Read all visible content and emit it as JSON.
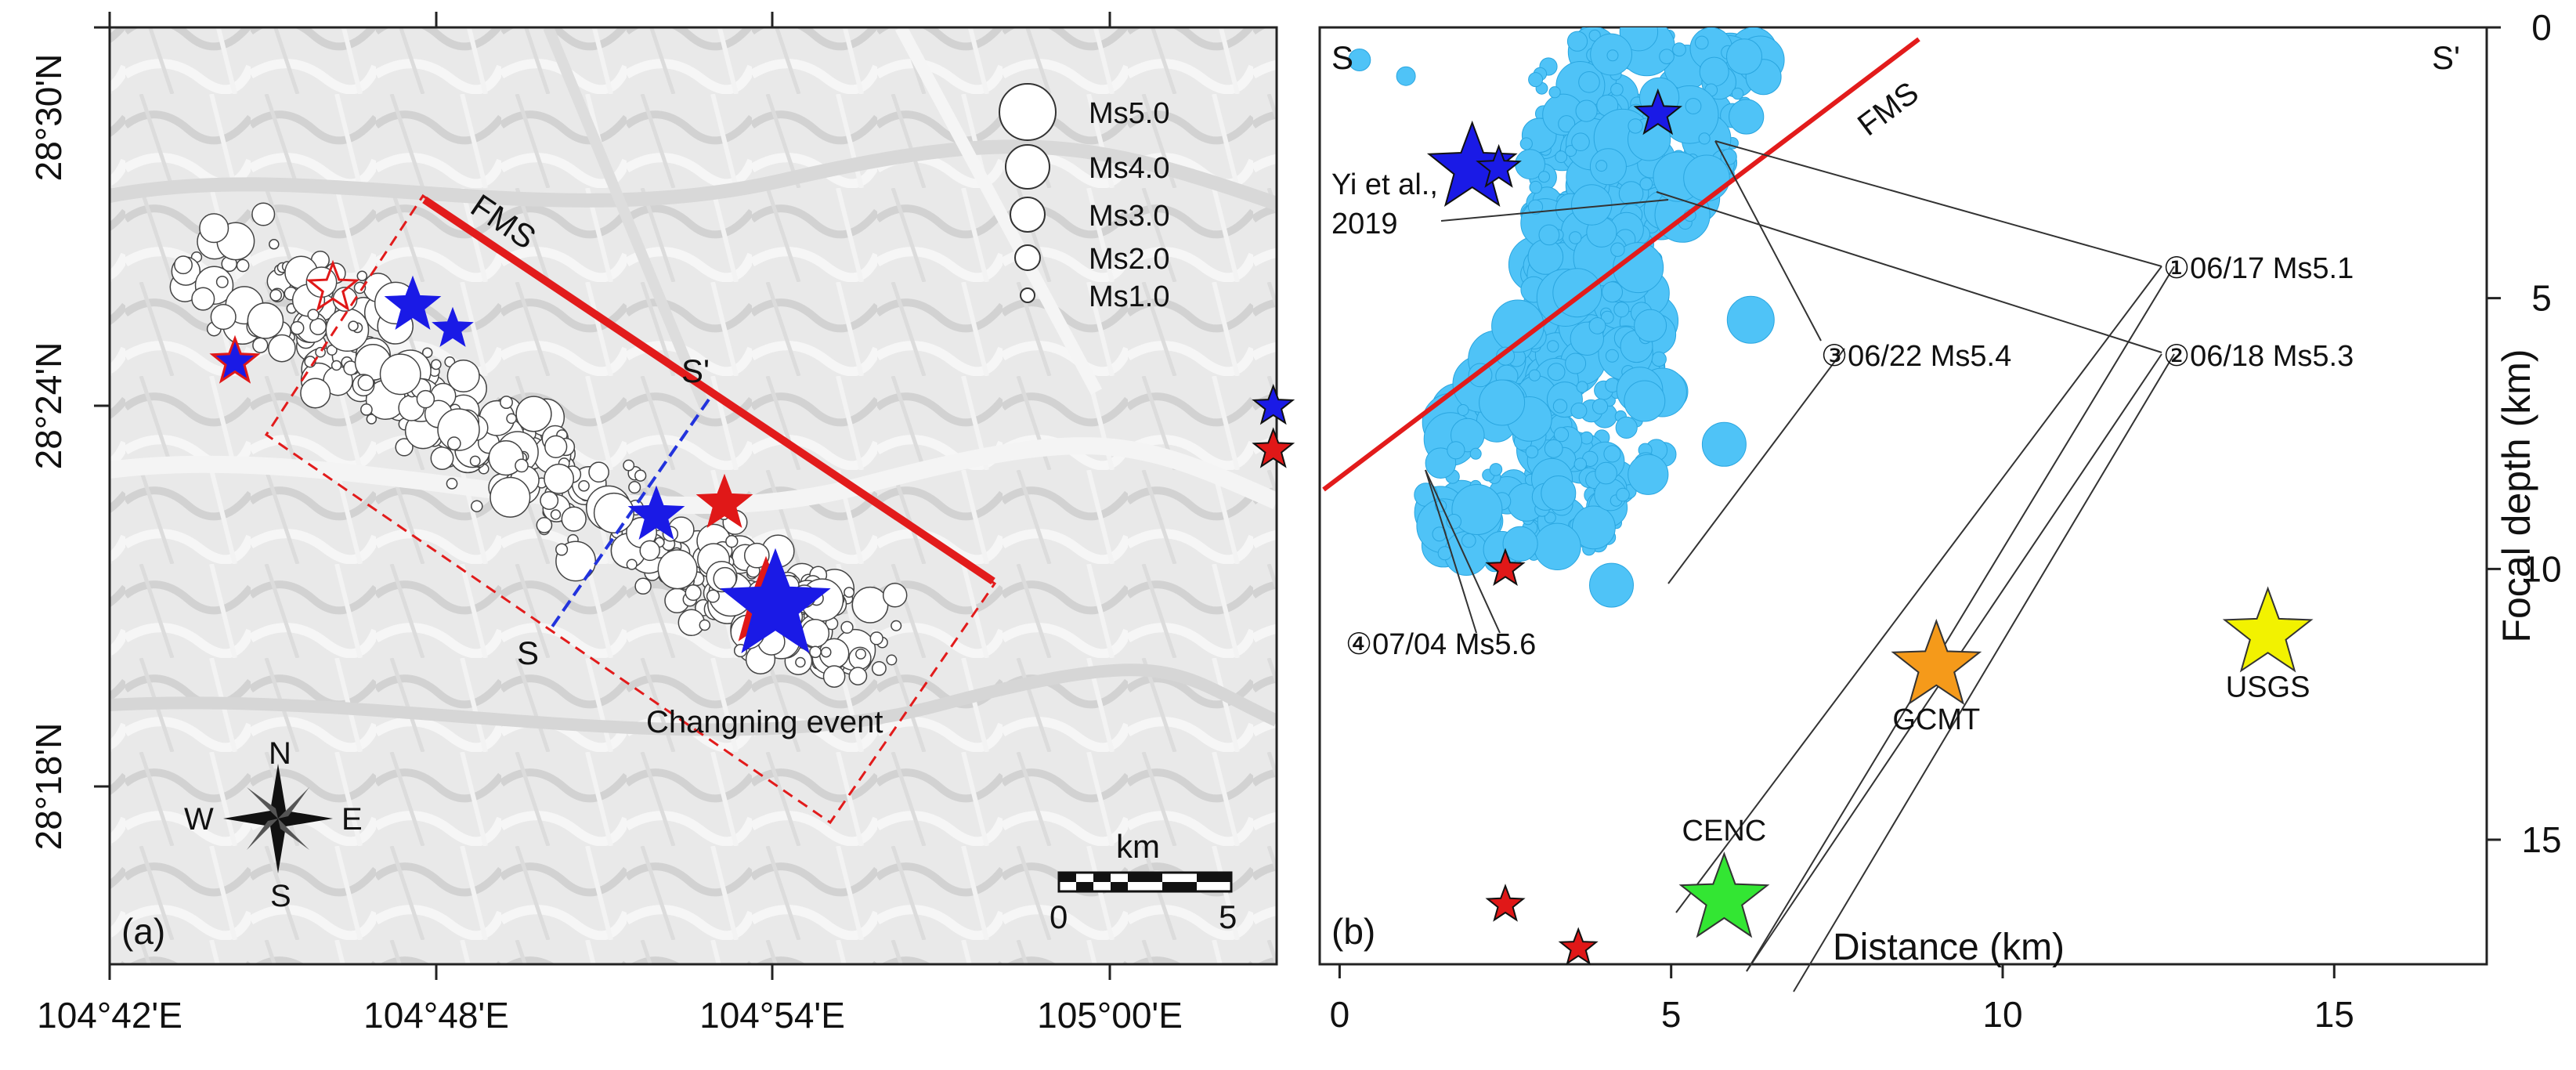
{
  "panel_a": {
    "label": "(a)",
    "lat_labels": [
      "28°30'N",
      "28°24'N",
      "28°18'N"
    ],
    "lon_labels": [
      "104°42'E",
      "104°48'E",
      "104°54'E",
      "105°00'E"
    ],
    "fault_label": "FMS",
    "profile_start": "S",
    "profile_end": "S'",
    "event_label": "Changning event",
    "legend": [
      "Ms5.0",
      "Ms4.0",
      "Ms3.0",
      "Ms2.0",
      "Ms1.0"
    ],
    "compass": {
      "n": "N",
      "s": "S",
      "e": "E",
      "w": "W"
    },
    "scalebar": {
      "unit": "km",
      "left": "0",
      "right": "5"
    }
  },
  "panel_b": {
    "label": "(b)",
    "corner_left": "S",
    "corner_right": "S'",
    "fault_label": "FMS",
    "xlabel": "Distance (km)",
    "ylabel": "Focal depth (km)",
    "x_ticks": [
      "0",
      "5",
      "10",
      "15"
    ],
    "y_ticks": [
      "0",
      "5",
      "10",
      "15"
    ],
    "ref_label_line1": "Yi et al.,",
    "ref_label_line2": "2019",
    "annotations": [
      "①06/17 Ms5.1",
      "②06/18 Ms5.3",
      "③06/22 Ms5.4",
      "④07/04 Ms5.6"
    ],
    "catalogs": [
      {
        "name": "CENC",
        "color": "#33e633",
        "distance": 5.8,
        "depth": 16.1
      },
      {
        "name": "GCMT",
        "color": "#f59a1a",
        "distance": 9.0,
        "depth": 11.8
      },
      {
        "name": "USGS",
        "color": "#f2f200",
        "distance": 14.0,
        "depth": 11.2
      }
    ]
  },
  "chart_data": {
    "type": "scatter",
    "xlabel": "Distance (km)",
    "ylabel": "Focal depth (km)",
    "xlim": [
      -0.3,
      17.3
    ],
    "ylim": [
      17.3,
      0
    ],
    "series": [
      {
        "name": "CENC",
        "x": [
          5.8
        ],
        "y": [
          16.1
        ]
      },
      {
        "name": "GCMT",
        "x": [
          9.0
        ],
        "y": [
          11.8
        ]
      },
      {
        "name": "USGS",
        "x": [
          14.0
        ],
        "y": [
          11.2
        ]
      }
    ]
  },
  "colors": {
    "fault": "#e21b1b",
    "aftershock_b": "#4fc3f7",
    "blue_star": "#1a1ae6",
    "red_star": "#e01818",
    "profile": "#2233dd"
  }
}
